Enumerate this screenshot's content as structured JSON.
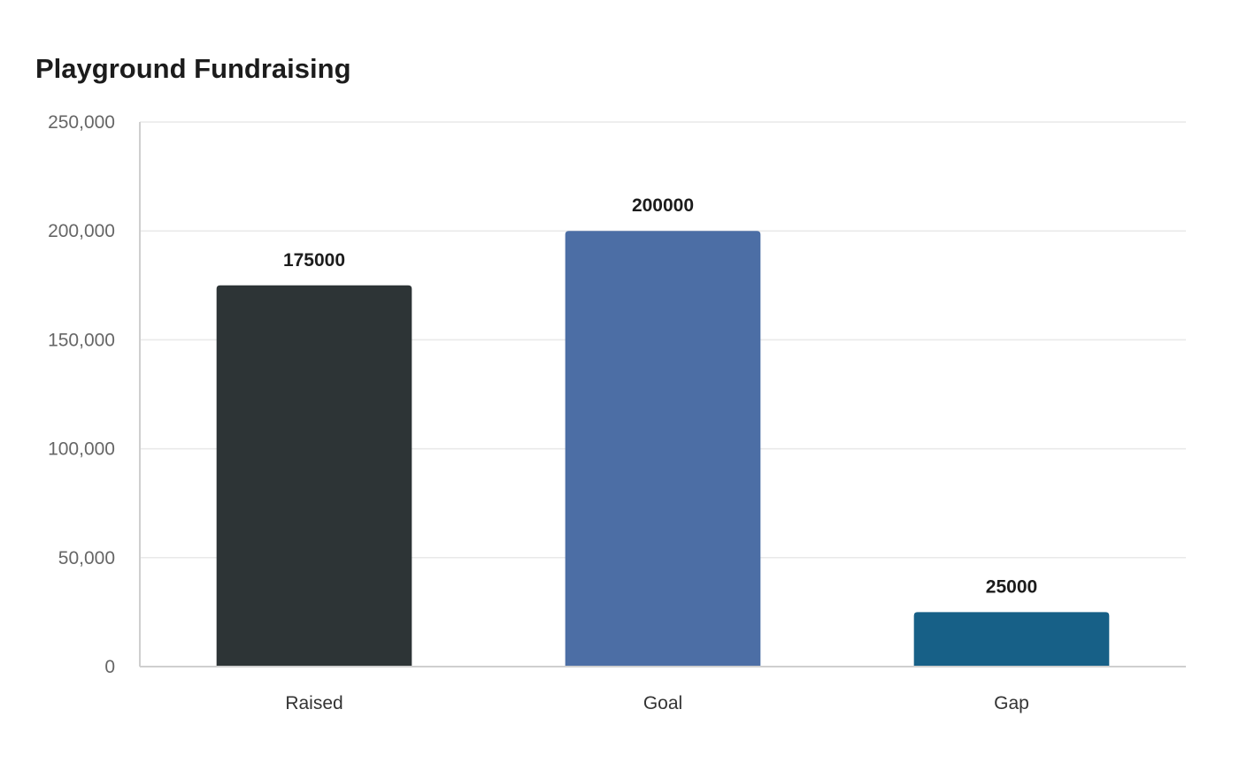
{
  "chart_data": {
    "type": "bar",
    "title": "Playground Fundraising",
    "categories": [
      "Raised",
      "Goal",
      "Gap"
    ],
    "values": [
      175000,
      200000,
      25000
    ],
    "data_labels": [
      "175000",
      "200000",
      "25000"
    ],
    "colors": [
      "#2d3436",
      "#4c6ea5",
      "#176087"
    ],
    "ylim": [
      0,
      250000
    ],
    "yticks": [
      0,
      50000,
      100000,
      150000,
      200000,
      250000
    ],
    "ytick_labels": [
      "0",
      "50,000",
      "100,000",
      "150,000",
      "200,000",
      "250,000"
    ],
    "xlabel": "",
    "ylabel": "",
    "grid": true,
    "legend": false
  }
}
